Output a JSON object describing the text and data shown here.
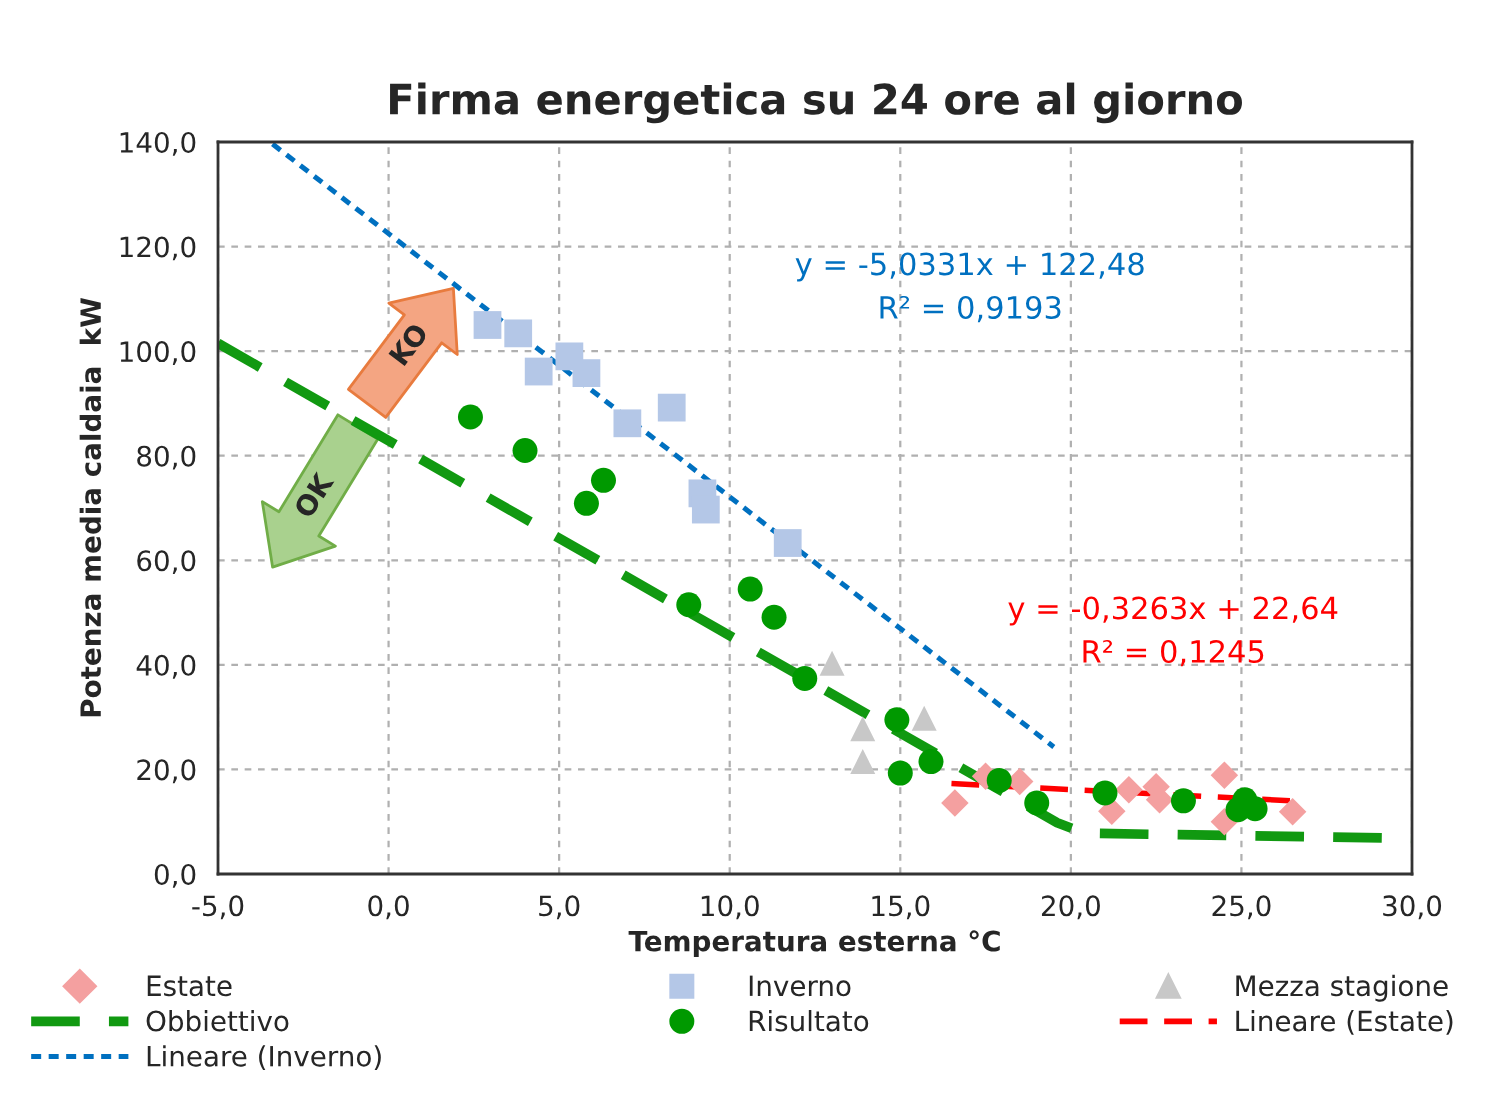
{
  "chart_data": {
    "type": "scatter",
    "title": "Firma energetica su 24 ore al giorno",
    "xlabel": "Temperatura esterna °C",
    "ylabel": "Potenza media caldaia  kW",
    "xlim": [
      -5,
      30
    ],
    "xticks": [
      {
        "value": -5,
        "label": "-5,0"
      },
      {
        "value": 0,
        "label": "0,0"
      },
      {
        "value": 5,
        "label": "5,0"
      },
      {
        "value": 10,
        "label": "10,0"
      },
      {
        "value": 15,
        "label": "15,0"
      },
      {
        "value": 20,
        "label": "20,0"
      },
      {
        "value": 25,
        "label": "25,0"
      },
      {
        "value": 30,
        "label": "30,0"
      }
    ],
    "ylim": [
      0,
      140
    ],
    "yticks": [
      {
        "value": 0,
        "label": "0,0"
      },
      {
        "value": 20,
        "label": "20,0"
      },
      {
        "value": 40,
        "label": "40,0"
      },
      {
        "value": 60,
        "label": "60,0"
      },
      {
        "value": 80,
        "label": "80,0"
      },
      {
        "value": 100,
        "label": "100,0"
      },
      {
        "value": 120,
        "label": "120,0"
      },
      {
        "value": 140,
        "label": "140,0"
      }
    ],
    "grid": true,
    "legend": "bottom",
    "series": [
      {
        "name": "Estate",
        "marker": "diamond",
        "color": "#f4a0a0",
        "x": [
          16.6,
          17.5,
          18.5,
          21.2,
          21.7,
          22.5,
          22.6,
          24.5,
          24.5,
          26.5
        ],
        "values": [
          13.6,
          18.7,
          17.7,
          12.0,
          16.1,
          16.7,
          14.2,
          18.9,
          10.0,
          11.9
        ]
      },
      {
        "name": "Inverno",
        "marker": "square",
        "color": "#b4c7e7",
        "x": [
          2.9,
          3.8,
          4.4,
          5.3,
          5.8,
          7.0,
          8.3,
          9.2,
          9.3,
          11.7
        ],
        "values": [
          105.0,
          103.4,
          96.1,
          99.0,
          95.8,
          86.2,
          89.2,
          72.8,
          69.7,
          63.3
        ]
      },
      {
        "name": "Mezza stagione",
        "marker": "triangle",
        "color": "#c8c8c8",
        "x": [
          13.0,
          13.9,
          15.7,
          13.9
        ],
        "values": [
          40.3,
          27.8,
          29.8,
          21.5
        ]
      },
      {
        "name": "Obbiettivo",
        "type": "line",
        "line_style": "dashed",
        "marker": "none",
        "color": "#119911",
        "x": [
          -5,
          19.6,
          20.4,
          30
        ],
        "values": [
          101.5,
          9.8,
          7.8,
          6.8
        ]
      },
      {
        "name": "Risultato",
        "marker": "circle",
        "color": "#009900",
        "x": [
          2.4,
          4.0,
          6.3,
          5.8,
          8.8,
          10.6,
          11.3,
          12.2,
          14.9,
          15.0,
          15.9,
          17.9,
          19.0,
          21.0,
          23.3,
          25.1,
          24.9,
          25.4
        ],
        "values": [
          87.4,
          81.0,
          75.3,
          70.9,
          51.5,
          54.5,
          49.1,
          37.4,
          29.5,
          19.3,
          21.5,
          17.9,
          13.6,
          15.5,
          14.0,
          14.2,
          12.3,
          12.5
        ]
      },
      {
        "name": "Lineare (Estate)",
        "type": "line",
        "line_style": "dashed",
        "marker": "none",
        "color": "#ff0000",
        "x": [
          16.5,
          26.5
        ],
        "values": [
          17.3,
          14.0
        ]
      },
      {
        "name": "Lineare (Inverno)",
        "type": "line",
        "line_style": "dotted",
        "marker": "none",
        "color": "#0070c0",
        "x": [
          -3.4,
          19.5
        ],
        "values": [
          139.6,
          24.3
        ]
      }
    ],
    "annotations": [
      "y = -5,0331x + 122,48\nR² = 0,9193",
      "y = -0,3263x + 22,64\nR² = 0,1245",
      "KO",
      "OK"
    ]
  }
}
